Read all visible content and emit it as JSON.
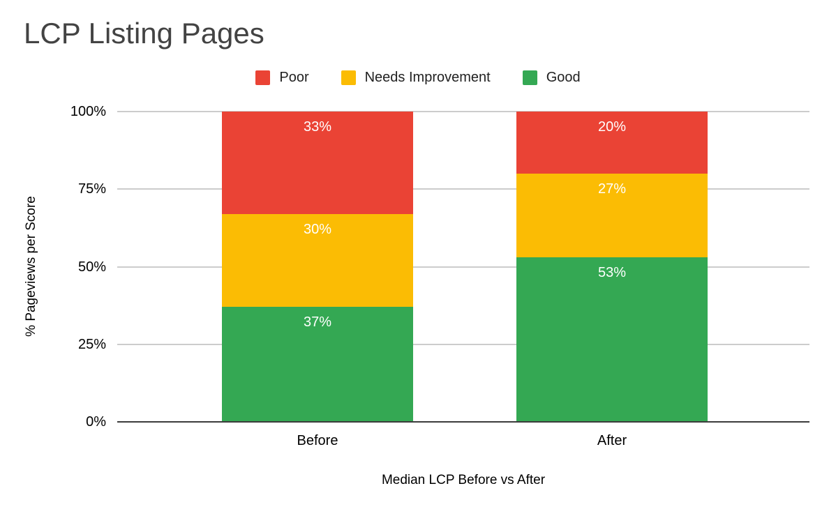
{
  "chart_data": {
    "type": "bar",
    "stacked": true,
    "title": "LCP Listing Pages",
    "xlabel": "Median LCP Before vs After",
    "ylabel": "% Pageviews per Score",
    "categories": [
      "Before",
      "After"
    ],
    "series": [
      {
        "name": "Poor",
        "color": "#EA4335",
        "values": [
          33,
          20
        ]
      },
      {
        "name": "Needs Improvement",
        "color": "#FBBC04",
        "values": [
          30,
          27
        ]
      },
      {
        "name": "Good",
        "color": "#34A853",
        "values": [
          37,
          53
        ]
      }
    ],
    "stack_order_bottom_to_top": [
      "Good",
      "Needs Improvement",
      "Poor"
    ],
    "bar_label_suffix": "%",
    "ylim": [
      0,
      100
    ],
    "yticks": [
      {
        "value": 0,
        "label": "0%"
      },
      {
        "value": 25,
        "label": "25%"
      },
      {
        "value": 50,
        "label": "50%"
      },
      {
        "value": 75,
        "label": "75%"
      },
      {
        "value": 100,
        "label": "100%"
      }
    ],
    "legend_position": "top",
    "grid": true,
    "colors": {
      "background": "#FFFFFF",
      "title_text": "#434343",
      "axis_text": "#000000",
      "bar_label_text": "#FFFFFF",
      "gridline": "#CCCCCC",
      "axis_baseline": "#3C3C3C"
    }
  }
}
